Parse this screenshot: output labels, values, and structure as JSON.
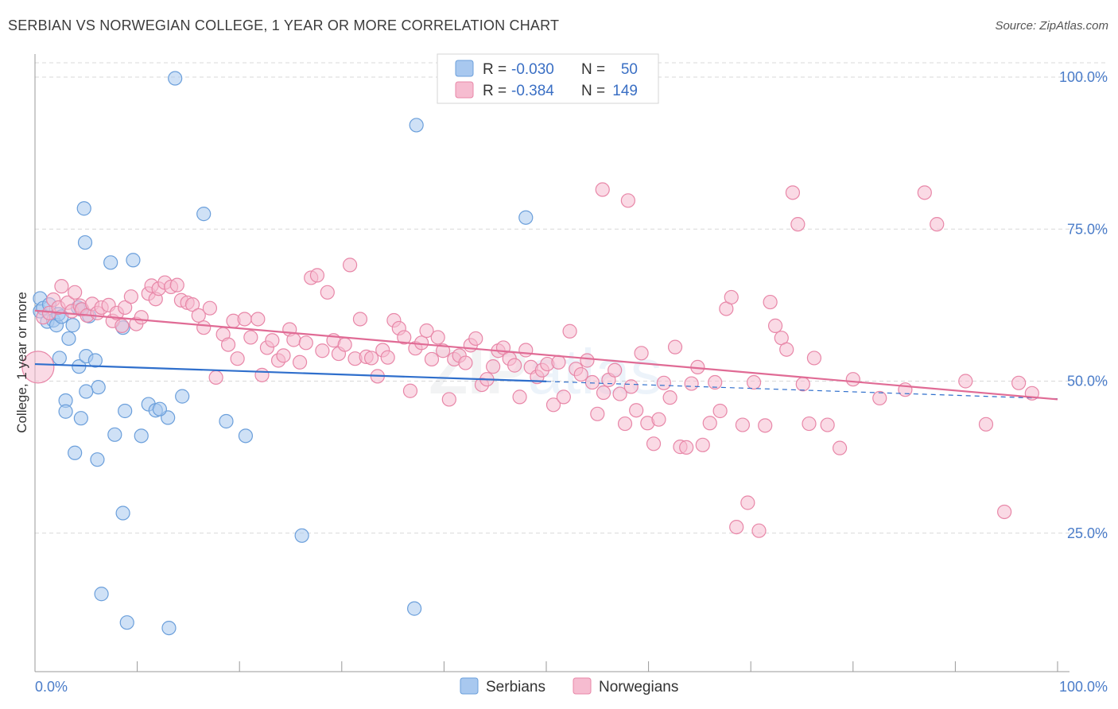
{
  "title": "SERBIAN VS NORWEGIAN COLLEGE, 1 YEAR OR MORE CORRELATION CHART",
  "source": "Source: ZipAtlas.com",
  "watermark": "ZIPatlas",
  "colors": {
    "serbians_fill": "#a8c8ef",
    "serbians_stroke": "#6b9fdb",
    "serbians_line": "#2f6fcc",
    "norwegians_fill": "#f6bcd0",
    "norwegians_stroke": "#e887a8",
    "norwegians_line": "#e06b95",
    "grid": "#d8d8d8",
    "tick_label": "#4a7cc9"
  },
  "legend": {
    "rows": [
      {
        "r_label": "R = ",
        "r_value": "-0.030",
        "n_label": "N = ",
        "n_value": "50"
      },
      {
        "r_label": "R = ",
        "r_value": "-0.384",
        "n_label": "N = ",
        "n_value": "149"
      }
    ]
  },
  "chart_data": {
    "type": "scatter",
    "title": "SERBIAN VS NORWEGIAN COLLEGE, 1 YEAR OR MORE CORRELATION CHART",
    "xlabel": "",
    "ylabel": "College, 1 year or more",
    "xlim": [
      0,
      100
    ],
    "ylim": [
      0,
      104
    ],
    "x_tick_labels": [
      "0.0%",
      "100.0%"
    ],
    "y_ticks": [
      25,
      50,
      75,
      100
    ],
    "y_tick_labels": [
      "25.0%",
      "50.0%",
      "75.0%",
      "100.0%"
    ],
    "grid": true,
    "legend_position": "top-center",
    "series": [
      {
        "name": "Serbians",
        "r": -0.03,
        "n": 50,
        "trend": {
          "x0": 0,
          "y0": 52.8,
          "x1": 100,
          "y1": 47.1,
          "solid_until": 50
        },
        "points": [
          [
            0.5,
            61.5
          ],
          [
            0.5,
            63.6
          ],
          [
            0.8,
            62.0
          ],
          [
            1.2,
            59.8
          ],
          [
            1.4,
            62.6
          ],
          [
            1.8,
            60.0
          ],
          [
            2.1,
            59.2
          ],
          [
            2.3,
            61.0
          ],
          [
            2.6,
            60.6
          ],
          [
            3.3,
            57.0
          ],
          [
            3.7,
            59.2
          ],
          [
            2.4,
            53.8
          ],
          [
            4.3,
            52.4
          ],
          [
            4.5,
            61.8
          ],
          [
            5.0,
            54.1
          ],
          [
            5.9,
            53.4
          ],
          [
            6.2,
            49.0
          ],
          [
            5.3,
            60.7
          ],
          [
            4.2,
            62.1
          ],
          [
            5.0,
            48.3
          ],
          [
            4.8,
            78.4
          ],
          [
            4.9,
            72.8
          ],
          [
            7.4,
            69.5
          ],
          [
            9.6,
            69.9
          ],
          [
            8.6,
            58.8
          ],
          [
            3.0,
            46.8
          ],
          [
            3.0,
            45.0
          ],
          [
            4.5,
            43.9
          ],
          [
            8.8,
            45.1
          ],
          [
            11.1,
            46.2
          ],
          [
            11.8,
            45.2
          ],
          [
            13.0,
            44.0
          ],
          [
            12.2,
            45.4
          ],
          [
            14.4,
            47.5
          ],
          [
            7.8,
            41.2
          ],
          [
            10.4,
            41.0
          ],
          [
            18.7,
            43.4
          ],
          [
            20.6,
            41.0
          ],
          [
            3.9,
            38.2
          ],
          [
            6.1,
            37.1
          ],
          [
            8.6,
            28.3
          ],
          [
            26.1,
            24.6
          ],
          [
            6.5,
            15.0
          ],
          [
            9.0,
            10.3
          ],
          [
            13.1,
            9.4
          ],
          [
            37.1,
            12.6
          ],
          [
            13.7,
            99.8
          ],
          [
            37.3,
            92.1
          ],
          [
            16.5,
            77.5
          ],
          [
            48.0,
            76.9
          ]
        ]
      },
      {
        "name": "Norwegians",
        "r": -0.384,
        "n": 149,
        "trend": {
          "x0": 0,
          "y0": 61.6,
          "x1": 100,
          "y1": 47.0,
          "solid_until": 100
        },
        "points": [
          [
            0.3,
            52.3
          ],
          [
            0.8,
            60.5
          ],
          [
            1.4,
            61.2
          ],
          [
            1.8,
            63.4
          ],
          [
            2.3,
            62.1
          ],
          [
            2.6,
            65.6
          ],
          [
            3.2,
            62.9
          ],
          [
            3.6,
            61.5
          ],
          [
            3.9,
            64.6
          ],
          [
            4.4,
            62.4
          ],
          [
            4.6,
            61.8
          ],
          [
            5.1,
            60.8
          ],
          [
            5.6,
            62.7
          ],
          [
            6.1,
            61.2
          ],
          [
            6.5,
            62.1
          ],
          [
            7.2,
            62.5
          ],
          [
            7.6,
            59.9
          ],
          [
            8.0,
            61.2
          ],
          [
            8.5,
            59.1
          ],
          [
            8.8,
            62.1
          ],
          [
            9.4,
            63.9
          ],
          [
            9.9,
            59.4
          ],
          [
            10.4,
            60.5
          ],
          [
            11.1,
            64.4
          ],
          [
            11.4,
            65.7
          ],
          [
            11.8,
            63.5
          ],
          [
            12.1,
            65.2
          ],
          [
            12.7,
            66.2
          ],
          [
            13.3,
            65.5
          ],
          [
            13.9,
            65.8
          ],
          [
            14.3,
            63.3
          ],
          [
            14.9,
            62.9
          ],
          [
            15.4,
            62.6
          ],
          [
            16.0,
            60.8
          ],
          [
            16.5,
            58.8
          ],
          [
            17.1,
            62.0
          ],
          [
            17.7,
            50.6
          ],
          [
            18.4,
            57.7
          ],
          [
            18.9,
            56.0
          ],
          [
            19.4,
            59.9
          ],
          [
            19.8,
            53.7
          ],
          [
            20.5,
            60.2
          ],
          [
            21.1,
            57.2
          ],
          [
            21.8,
            60.2
          ],
          [
            22.2,
            51.0
          ],
          [
            22.7,
            55.5
          ],
          [
            23.2,
            56.7
          ],
          [
            23.8,
            53.4
          ],
          [
            24.3,
            54.2
          ],
          [
            24.9,
            58.5
          ],
          [
            25.3,
            56.8
          ],
          [
            25.9,
            53.1
          ],
          [
            26.5,
            56.3
          ],
          [
            27.0,
            67.0
          ],
          [
            27.6,
            67.4
          ],
          [
            28.1,
            55.0
          ],
          [
            28.6,
            64.6
          ],
          [
            29.2,
            56.7
          ],
          [
            29.7,
            54.5
          ],
          [
            30.3,
            56.0
          ],
          [
            30.8,
            69.1
          ],
          [
            31.3,
            53.7
          ],
          [
            31.8,
            60.2
          ],
          [
            32.4,
            54.0
          ],
          [
            32.9,
            53.8
          ],
          [
            33.5,
            50.8
          ],
          [
            34.0,
            55.1
          ],
          [
            34.5,
            53.9
          ],
          [
            35.1,
            60.0
          ],
          [
            35.6,
            58.7
          ],
          [
            36.1,
            57.2
          ],
          [
            36.7,
            48.4
          ],
          [
            37.2,
            55.4
          ],
          [
            37.8,
            56.3
          ],
          [
            38.3,
            58.3
          ],
          [
            38.8,
            53.6
          ],
          [
            39.4,
            57.2
          ],
          [
            39.9,
            55.0
          ],
          [
            40.5,
            47.0
          ],
          [
            41.0,
            53.6
          ],
          [
            41.5,
            54.2
          ],
          [
            42.1,
            53.0
          ],
          [
            42.6,
            55.9
          ],
          [
            43.1,
            57.0
          ],
          [
            43.7,
            49.4
          ],
          [
            44.2,
            50.3
          ],
          [
            44.8,
            52.4
          ],
          [
            45.3,
            55.0
          ],
          [
            45.8,
            55.5
          ],
          [
            46.4,
            53.7
          ],
          [
            46.9,
            52.6
          ],
          [
            47.4,
            47.4
          ],
          [
            48.0,
            55.1
          ],
          [
            48.5,
            52.3
          ],
          [
            49.1,
            50.7
          ],
          [
            49.6,
            51.8
          ],
          [
            50.1,
            52.8
          ],
          [
            50.7,
            46.1
          ],
          [
            51.2,
            53.1
          ],
          [
            51.7,
            47.4
          ],
          [
            52.3,
            58.2
          ],
          [
            52.9,
            52.0
          ],
          [
            53.4,
            51.1
          ],
          [
            54.0,
            53.4
          ],
          [
            54.5,
            49.8
          ],
          [
            55.0,
            44.6
          ],
          [
            55.6,
            48.1
          ],
          [
            56.1,
            50.2
          ],
          [
            56.7,
            51.8
          ],
          [
            57.2,
            47.9
          ],
          [
            57.7,
            43.0
          ],
          [
            58.3,
            49.1
          ],
          [
            58.8,
            45.2
          ],
          [
            59.3,
            54.6
          ],
          [
            59.9,
            43.1
          ],
          [
            60.5,
            39.7
          ],
          [
            61.0,
            43.7
          ],
          [
            61.5,
            49.7
          ],
          [
            62.1,
            47.3
          ],
          [
            62.6,
            55.6
          ],
          [
            63.1,
            39.2
          ],
          [
            63.7,
            39.1
          ],
          [
            64.2,
            49.6
          ],
          [
            64.8,
            52.3
          ],
          [
            65.3,
            39.5
          ],
          [
            66.0,
            43.1
          ],
          [
            66.5,
            49.8
          ],
          [
            67.0,
            45.1
          ],
          [
            67.6,
            61.9
          ],
          [
            68.1,
            63.8
          ],
          [
            68.6,
            26.0
          ],
          [
            69.2,
            42.8
          ],
          [
            69.7,
            30.0
          ],
          [
            70.3,
            49.8
          ],
          [
            70.8,
            25.4
          ],
          [
            71.4,
            42.7
          ],
          [
            71.9,
            63.0
          ],
          [
            72.4,
            59.1
          ],
          [
            73.0,
            57.1
          ],
          [
            73.5,
            55.2
          ],
          [
            74.1,
            81.0
          ],
          [
            74.6,
            75.8
          ],
          [
            75.1,
            49.5
          ],
          [
            75.7,
            43.0
          ],
          [
            76.2,
            53.8
          ],
          [
            77.5,
            42.8
          ],
          [
            78.7,
            39.0
          ],
          [
            80.0,
            50.3
          ],
          [
            82.6,
            47.2
          ],
          [
            85.1,
            48.6
          ],
          [
            87.0,
            81.0
          ],
          [
            88.2,
            75.8
          ],
          [
            91.0,
            50.0
          ],
          [
            93.0,
            42.9
          ],
          [
            94.8,
            28.5
          ],
          [
            96.2,
            49.7
          ],
          [
            97.5,
            48.0
          ],
          [
            55.5,
            81.5
          ],
          [
            58.0,
            79.7
          ]
        ]
      }
    ]
  },
  "bottom_legend": [
    "Serbians",
    "Norwegians"
  ]
}
